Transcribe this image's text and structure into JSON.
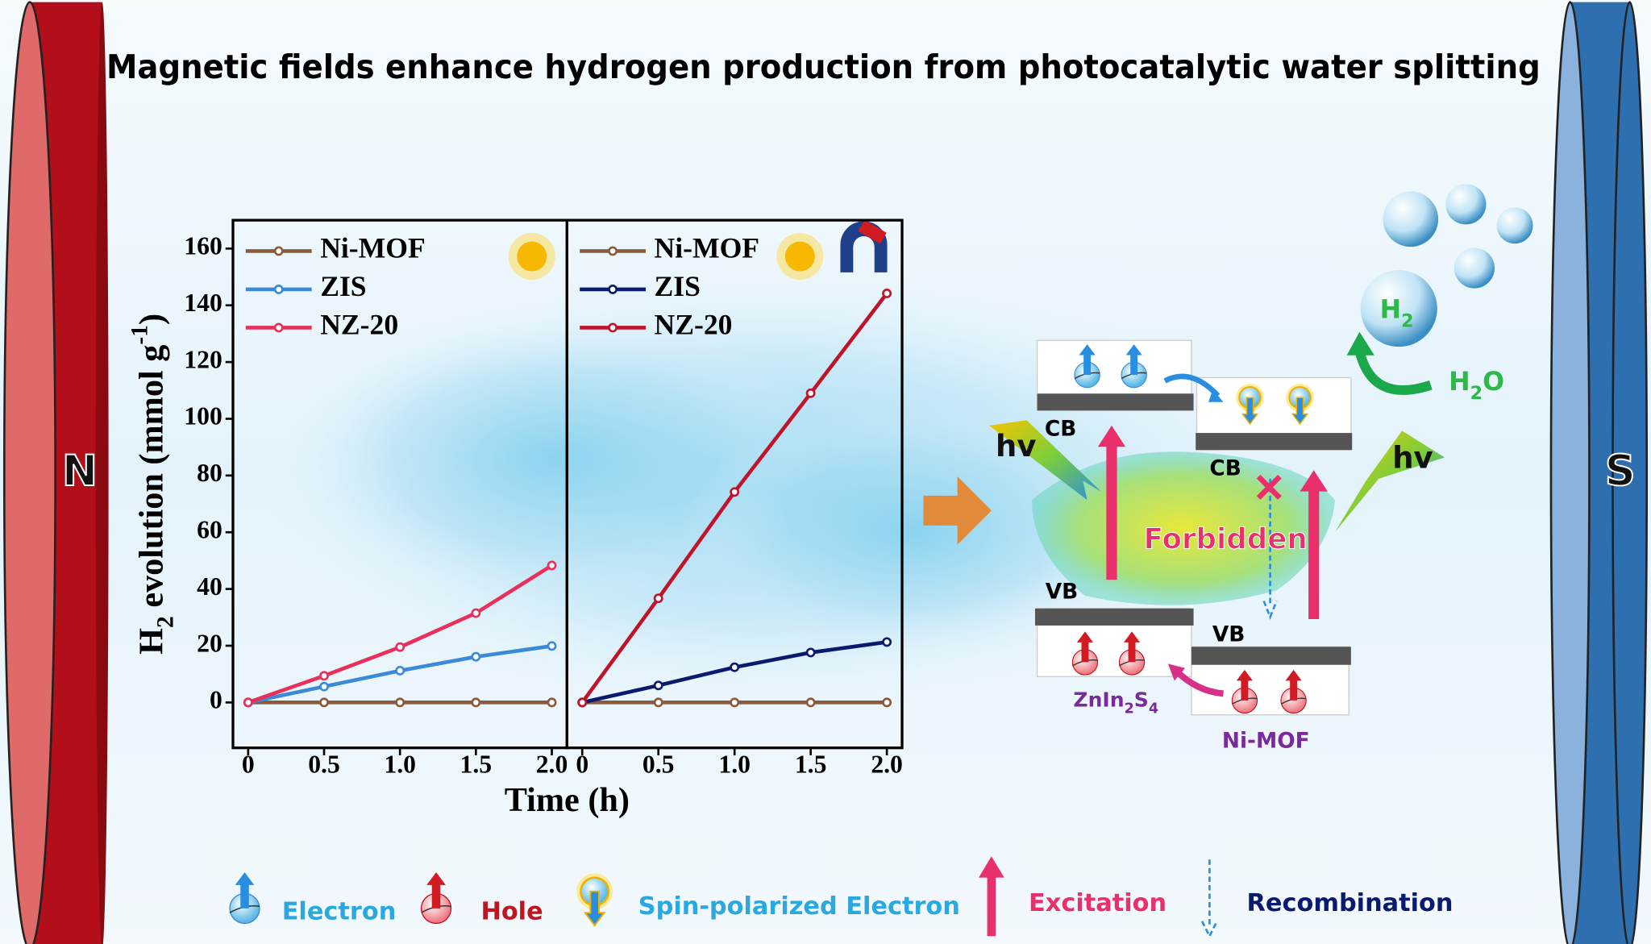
{
  "title": "Magnetic fields enhance hydrogen production from photocatalytic water splitting",
  "magnets": {
    "north": "N",
    "south": "S"
  },
  "chart_data": [
    {
      "type": "line",
      "ylabel": [
        "H",
        "2",
        " evolution (mmol g",
        "-1",
        ")"
      ],
      "xlabel": "Time (h)",
      "x": [
        0,
        0.5,
        1,
        1.5,
        2
      ],
      "xlim": [
        -0.1,
        2.1
      ],
      "ylim": [
        -16,
        170
      ],
      "xticks": [
        0,
        0.5,
        {
          "value": 1,
          "label": "1.0"
        },
        1.5,
        {
          "value": 2,
          "label": "2.0"
        }
      ],
      "yticks": [
        0,
        20,
        40,
        60,
        80,
        100,
        120,
        140,
        160
      ],
      "legend": "upper left",
      "series": [
        {
          "name": "Ni-MOF",
          "color": "#8b5a3c",
          "values": [
            0,
            0,
            0,
            0,
            0
          ]
        },
        {
          "name": "ZIS",
          "color": "#3a8ad8",
          "values": [
            0,
            5.6,
            11.2,
            16.1,
            19.9
          ]
        },
        {
          "name": "NZ-20",
          "color": "#e8305a",
          "values": [
            0,
            9.4,
            19.5,
            31.5,
            48.3
          ]
        }
      ]
    },
    {
      "type": "line",
      "x": [
        0,
        0.5,
        1,
        1.5,
        2
      ],
      "xlim": [
        -0.1,
        2.1
      ],
      "ylim": [
        -16,
        170
      ],
      "xticks": [
        0,
        0.5,
        {
          "value": 1,
          "label": "1.0"
        },
        1.5,
        {
          "value": 2,
          "label": "2.0"
        }
      ],
      "legend": "upper left",
      "series": [
        {
          "name": "Ni-MOF",
          "color": "#8b5a3c",
          "values": [
            0,
            0,
            0,
            0,
            0
          ]
        },
        {
          "name": "ZIS",
          "color": "#0a1a6e",
          "values": [
            0,
            6,
            12.4,
            17.6,
            21.3
          ]
        },
        {
          "name": "NZ-20",
          "color": "#c0142a",
          "values": [
            0,
            36.7,
            74.2,
            109,
            144.2
          ]
        }
      ]
    }
  ],
  "diagram": {
    "cb": [
      "CB",
      "CB"
    ],
    "vb": [
      "VB",
      "VB"
    ],
    "light": [
      "hv",
      "hv"
    ],
    "blocked": "Forbidden",
    "znis": [
      "ZnIn",
      "2",
      "S",
      "4"
    ],
    "nimof": "Ni-MOF",
    "h2": [
      "H",
      "2"
    ],
    "h2o": [
      "H",
      "2",
      "O"
    ]
  },
  "legend": [
    "Electron",
    "Hole",
    "Spin-polarized Electron",
    "Excitation",
    "Recombination"
  ]
}
